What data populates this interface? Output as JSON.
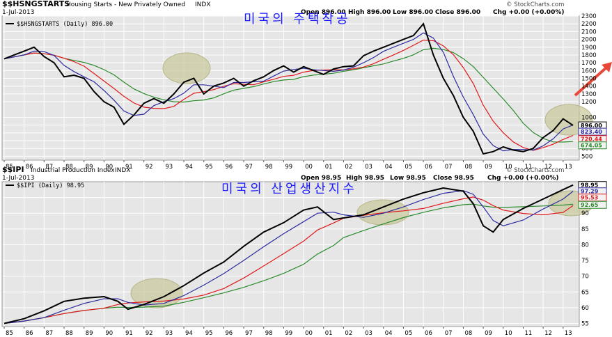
{
  "watermark": "© StockCharts.com",
  "x_years": [
    "85",
    "86",
    "87",
    "88",
    "89",
    "90",
    "91",
    "92",
    "93",
    "94",
    "95",
    "96",
    "97",
    "98",
    "99",
    "00",
    "01",
    "02",
    "03",
    "04",
    "05",
    "06",
    "07",
    "08",
    "09",
    "10",
    "11",
    "12",
    "13"
  ],
  "colors": {
    "price": "#000000",
    "ma_blue": "#2b2b9f",
    "ma_red": "#e0191b",
    "ma_green": "#2a8a2a",
    "panel_bg": "#e6e6e6",
    "grid": "#ffffff",
    "annot_text": "#1a1aff",
    "arrow": "#e8483a",
    "highlight": "#c8c79a"
  },
  "chart_data": [
    {
      "type": "line",
      "symbol": "$$HSNGSTARTS",
      "title": "Housing Starts - New Privately Owned",
      "exchange": "INDX",
      "date": "1-Jul-2013",
      "ohlc": {
        "open": "Open 896.00",
        "high": "High 896.00",
        "low": "Low 896.00",
        "close": "Close 896.00",
        "chg": "Chg +0.00 (+0.00%)"
      },
      "legend_label": "$$HSNGSTARTS (Daily) 896.00",
      "annotation": "미국의 주택착공",
      "ylim": [
        450,
        2300
      ],
      "yticks": [
        500,
        600,
        700,
        800,
        900,
        1000,
        1200,
        1300,
        1400,
        1500,
        1600,
        1700,
        1800,
        1900,
        2000,
        2100,
        2200,
        2300
      ],
      "value_tags": [
        {
          "text": "896.00",
          "value": 896,
          "color": "#000000"
        },
        {
          "text": "823.40",
          "value": 823.4,
          "color": "#2b2b9f"
        },
        {
          "text": "720.44",
          "value": 720.44,
          "color": "#e0191b"
        },
        {
          "text": "674.05",
          "value": 674.05,
          "color": "#2a8a2a"
        }
      ],
      "x": [
        1985.0,
        1985.5,
        1986.0,
        1986.5,
        1987.0,
        1987.5,
        1988.0,
        1988.5,
        1989.0,
        1989.5,
        1990.0,
        1990.5,
        1991.0,
        1991.5,
        1992.0,
        1992.5,
        1993.0,
        1993.5,
        1994.0,
        1994.5,
        1995.0,
        1995.5,
        1996.0,
        1996.5,
        1997.0,
        1997.5,
        1998.0,
        1998.5,
        1999.0,
        1999.5,
        2000.0,
        2000.5,
        2001.0,
        2001.5,
        2002.0,
        2002.5,
        2003.0,
        2003.5,
        2004.0,
        2004.5,
        2005.0,
        2005.5,
        2006.0,
        2006.5,
        2007.0,
        2007.5,
        2008.0,
        2008.5,
        2009.0,
        2009.5,
        2010.0,
        2010.5,
        2011.0,
        2011.5,
        2012.0,
        2012.5,
        2013.0,
        2013.5
      ],
      "series": [
        {
          "name": "price",
          "values": [
            1750,
            1800,
            1850,
            1900,
            1780,
            1700,
            1520,
            1540,
            1500,
            1330,
            1200,
            1130,
            910,
            1030,
            1180,
            1240,
            1180,
            1300,
            1450,
            1500,
            1300,
            1400,
            1440,
            1500,
            1400,
            1470,
            1520,
            1600,
            1660,
            1580,
            1650,
            1600,
            1550,
            1620,
            1650,
            1660,
            1790,
            1850,
            1900,
            1950,
            2000,
            2050,
            2200,
            1800,
            1500,
            1280,
            1000,
            820,
            530,
            560,
            620,
            580,
            560,
            600,
            740,
            830,
            980,
            896
          ]
        }
      ]
    },
    {
      "type": "line",
      "symbol": "$$IPI",
      "title": "Industrial Production Index",
      "exchange": "INDX",
      "date": "1-Jul-2013",
      "ohlc": {
        "open": "Open 98.95",
        "high": "High 98.95",
        "low": "Low 98.95",
        "close": "Close 98.95",
        "chg": "Chg +0.00 (+0.00%)"
      },
      "legend_label": "$$IPI (Daily) 98.95",
      "annotation": "미국의 산업생산지수",
      "ylim": [
        54,
        100
      ],
      "yticks": [
        55,
        60,
        65,
        70,
        75,
        80,
        85,
        90,
        95
      ],
      "value_tags": [
        {
          "text": "98.95",
          "value": 98.95,
          "color": "#000000"
        },
        {
          "text": "97.29",
          "value": 97.29,
          "color": "#2b2b9f"
        },
        {
          "text": "95.53",
          "value": 95.53,
          "color": "#e0191b"
        },
        {
          "text": "92.65",
          "value": 92.65,
          "color": "#2a8a2a"
        }
      ],
      "x": [
        1985.0,
        1986.0,
        1987.0,
        1988.0,
        1989.0,
        1990.0,
        1990.7,
        1991.2,
        1992.0,
        1993.0,
        1994.0,
        1995.0,
        1996.0,
        1997.0,
        1998.0,
        1999.0,
        2000.0,
        2000.7,
        2001.5,
        2002.0,
        2003.0,
        2004.0,
        2005.0,
        2006.0,
        2007.0,
        2008.0,
        2008.5,
        2009.0,
        2009.5,
        2010.0,
        2011.0,
        2012.0,
        2013.0,
        2013.5
      ],
      "series": [
        {
          "name": "price",
          "values": [
            55,
            56.5,
            59,
            62,
            63,
            63.5,
            62,
            59.5,
            61,
            63.5,
            67,
            71,
            74.5,
            79.5,
            84,
            87,
            91,
            92,
            88,
            88.5,
            89.5,
            92,
            94.5,
            96.5,
            98,
            97,
            93,
            86,
            84,
            88,
            91.5,
            94.5,
            97.5,
            98.95
          ]
        }
      ]
    }
  ]
}
